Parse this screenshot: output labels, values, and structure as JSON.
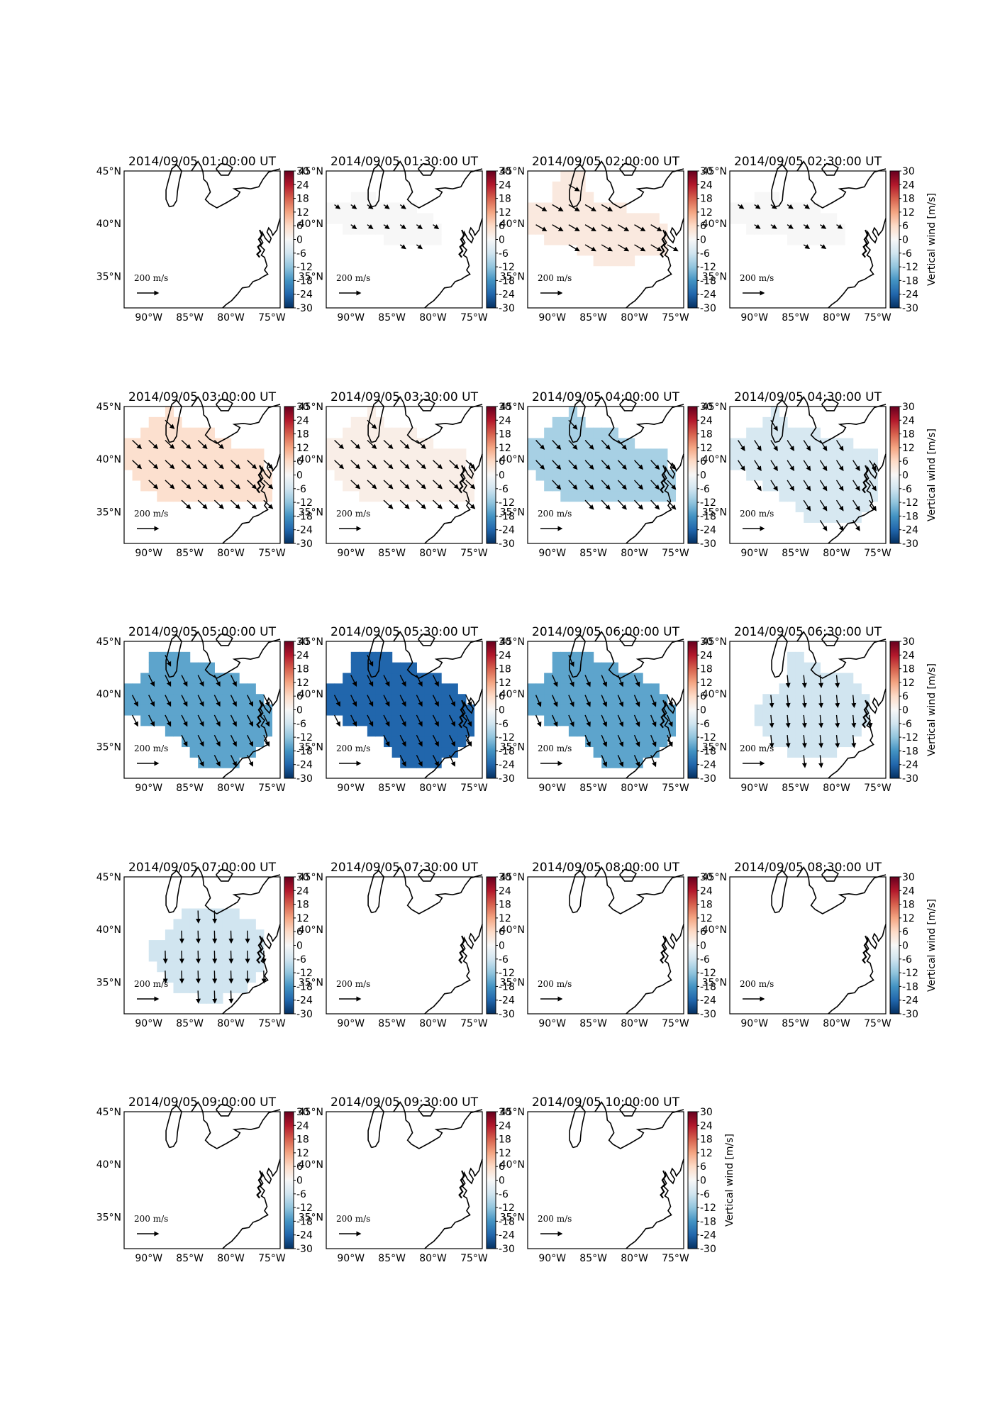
{
  "chart_data": {
    "type": "map",
    "colorbar_label": "Vertical wind [m/s]",
    "colorbar_ticks": [
      30,
      24,
      18,
      12,
      6,
      0,
      -6,
      -12,
      -18,
      -24,
      -30
    ],
    "colorbar_range": [
      -30,
      30
    ],
    "colormap": "RdBu_r",
    "lat_ticks": [
      "45°N",
      "40°N",
      "35°N"
    ],
    "lon_ticks": [
      "90°W",
      "85°W",
      "80°W",
      "75°W"
    ],
    "lat_range": [
      32,
      45
    ],
    "lon_range": [
      -93,
      -74
    ],
    "vector_scale_label": "200 m/s",
    "panels": [
      {
        "title": "2014/09/05 01:00:00 UT",
        "vertical_wind": null,
        "extent": 0,
        "wind_dir": [
          0,
          0
        ]
      },
      {
        "title": "2014/09/05 01:30:00 UT",
        "vertical_wind": 0,
        "extent": 1,
        "wind_dir": [
          0.75,
          -0.55
        ]
      },
      {
        "title": "2014/09/05 02:00:00 UT",
        "vertical_wind": 3,
        "extent": 2,
        "wind_dir": [
          0.85,
          -0.5
        ]
      },
      {
        "title": "2014/09/05 02:30:00 UT",
        "vertical_wind": 0,
        "extent": 1,
        "wind_dir": [
          0.8,
          -0.55
        ]
      },
      {
        "title": "2014/09/05 03:00:00 UT",
        "vertical_wind": 5,
        "extent": 3,
        "wind_dir": [
          0.75,
          -0.7
        ]
      },
      {
        "title": "2014/09/05 03:30:00 UT",
        "vertical_wind": 2,
        "extent": 3,
        "wind_dir": [
          0.75,
          -0.7
        ]
      },
      {
        "title": "2014/09/05 04:00:00 UT",
        "vertical_wind": -10,
        "extent": 3,
        "wind_dir": [
          0.7,
          -0.75
        ]
      },
      {
        "title": "2014/09/05 04:30:00 UT",
        "vertical_wind": -5,
        "extent": 4,
        "wind_dir": [
          0.55,
          -0.85
        ]
      },
      {
        "title": "2014/09/05 05:00:00 UT",
        "vertical_wind": -16,
        "extent": 5,
        "wind_dir": [
          0.45,
          -0.9
        ]
      },
      {
        "title": "2014/09/05 05:30:00 UT",
        "vertical_wind": -24,
        "extent": 5,
        "wind_dir": [
          0.45,
          -0.9
        ]
      },
      {
        "title": "2014/09/05 06:00:00 UT",
        "vertical_wind": -16,
        "extent": 5,
        "wind_dir": [
          0.4,
          -0.92
        ]
      },
      {
        "title": "2014/09/05 06:30:00 UT",
        "vertical_wind": -6,
        "extent": 6,
        "wind_dir": [
          0.1,
          -1
        ]
      },
      {
        "title": "2014/09/05 07:00:00 UT",
        "vertical_wind": -6,
        "extent": 7,
        "wind_dir": [
          0.03,
          -1
        ]
      },
      {
        "title": "2014/09/05 07:30:00 UT",
        "vertical_wind": null,
        "extent": 0,
        "wind_dir": [
          0,
          0
        ]
      },
      {
        "title": "2014/09/05 08:00:00 UT",
        "vertical_wind": null,
        "extent": 0,
        "wind_dir": [
          0,
          0
        ]
      },
      {
        "title": "2014/09/05 08:30:00 UT",
        "vertical_wind": null,
        "extent": 0,
        "wind_dir": [
          0,
          0
        ]
      },
      {
        "title": "2014/09/05 09:00:00 UT",
        "vertical_wind": null,
        "extent": 0,
        "wind_dir": [
          0,
          0
        ]
      },
      {
        "title": "2014/09/05 09:30:00 UT",
        "vertical_wind": null,
        "extent": 0,
        "wind_dir": [
          0,
          0
        ]
      },
      {
        "title": "2014/09/05 10:00:00 UT",
        "vertical_wind": null,
        "extent": 0,
        "wind_dir": [
          0,
          0
        ]
      }
    ]
  }
}
